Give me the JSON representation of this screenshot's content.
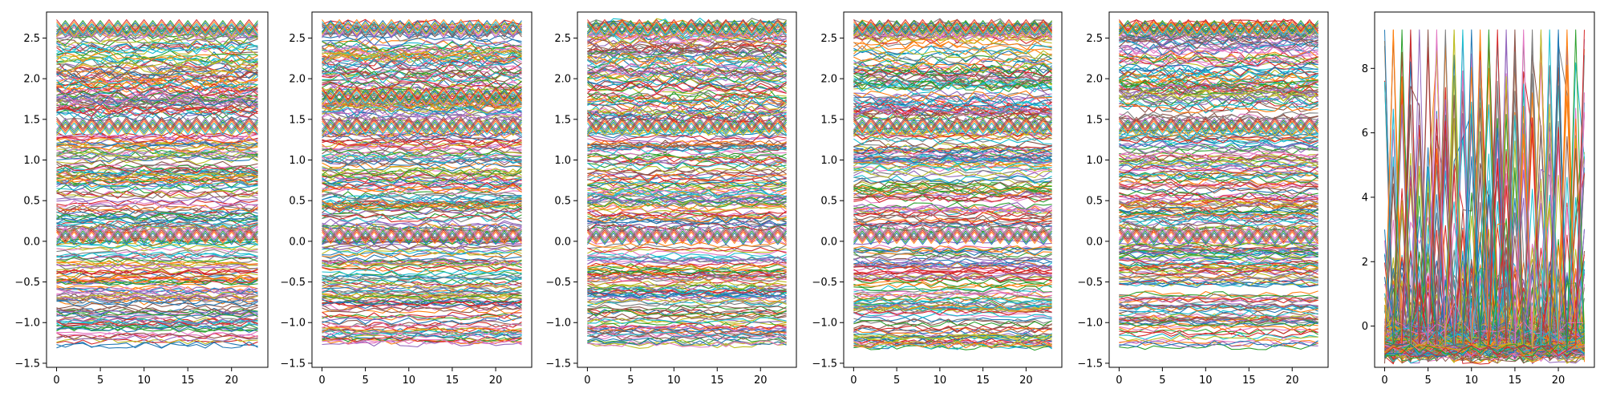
{
  "chart_data": [
    {
      "type": "line",
      "title": "",
      "xlabel": "",
      "ylabel": "",
      "xlim": [
        -1.15,
        24.15
      ],
      "ylim": [
        -1.55,
        2.82
      ],
      "x_ticks": [
        0,
        5,
        10,
        15,
        20
      ],
      "x_tick_labels": [
        "0",
        "5",
        "10",
        "15",
        "20"
      ],
      "y_ticks": [
        -1.5,
        -1.0,
        -0.5,
        0.0,
        0.5,
        1.0,
        1.5,
        2.0,
        2.5
      ],
      "y_tick_labels": [
        "−1.5",
        "−1.0",
        "−0.5",
        "0.0",
        "0.5",
        "1.0",
        "1.5",
        "2.0",
        "2.5"
      ],
      "grid": false,
      "x": [
        0,
        1,
        2,
        3,
        4,
        5,
        6,
        7,
        8,
        9,
        10,
        11,
        12,
        13,
        14,
        15,
        16,
        17,
        18,
        19,
        20,
        21,
        22,
        23
      ],
      "series_description": "many overlapping series, approximately constant, spread between -1.3 and 2.7 with gaps near 0.05 and 1.45",
      "bands": [
        {
          "low": -1.3,
          "high": 0.02,
          "noise": 0.04,
          "count": 95
        },
        {
          "low": 0.15,
          "high": 1.35,
          "noise": 0.05,
          "count": 90
        },
        {
          "low": 1.5,
          "high": 2.68,
          "noise": 0.07,
          "count": 95
        }
      ],
      "zigzag_levels": [
        0.08,
        1.42,
        2.62
      ]
    },
    {
      "type": "line",
      "title": "",
      "xlabel": "",
      "ylabel": "",
      "xlim": [
        -1.15,
        24.15
      ],
      "ylim": [
        -1.55,
        2.82
      ],
      "x_ticks": [
        0,
        5,
        10,
        15,
        20
      ],
      "x_tick_labels": [
        "0",
        "5",
        "10",
        "15",
        "20"
      ],
      "y_ticks": [
        -1.5,
        -1.0,
        -0.5,
        0.0,
        0.5,
        1.0,
        1.5,
        2.0,
        2.5
      ],
      "y_tick_labels": [
        "−1.5",
        "−1.0",
        "−0.5",
        "0.0",
        "0.5",
        "1.0",
        "1.5",
        "2.0",
        "2.5"
      ],
      "grid": false,
      "x": [
        0,
        1,
        2,
        3,
        4,
        5,
        6,
        7,
        8,
        9,
        10,
        11,
        12,
        13,
        14,
        15,
        16,
        17,
        18,
        19,
        20,
        21,
        22,
        23
      ],
      "bands": [
        {
          "low": -1.3,
          "high": 0.02,
          "noise": 0.04,
          "count": 95
        },
        {
          "low": 0.15,
          "high": 1.35,
          "noise": 0.05,
          "count": 90
        },
        {
          "low": 1.5,
          "high": 2.68,
          "noise": 0.07,
          "count": 95
        }
      ],
      "zigzag_levels": [
        0.08,
        1.42,
        1.78,
        2.62
      ]
    },
    {
      "type": "line",
      "title": "",
      "xlabel": "",
      "ylabel": "",
      "xlim": [
        -1.15,
        24.15
      ],
      "ylim": [
        -1.55,
        2.82
      ],
      "x_ticks": [
        0,
        5,
        10,
        15,
        20
      ],
      "x_tick_labels": [
        "0",
        "5",
        "10",
        "15",
        "20"
      ],
      "y_ticks": [
        -1.5,
        -1.0,
        -0.5,
        0.0,
        0.5,
        1.0,
        1.5,
        2.0,
        2.5
      ],
      "y_tick_labels": [
        "−1.5",
        "−1.0",
        "−0.5",
        "0.0",
        "0.5",
        "1.0",
        "1.5",
        "2.0",
        "2.5"
      ],
      "grid": false,
      "x": [
        0,
        1,
        2,
        3,
        4,
        5,
        6,
        7,
        8,
        9,
        10,
        11,
        12,
        13,
        14,
        15,
        16,
        17,
        18,
        19,
        20,
        21,
        22,
        23
      ],
      "bands": [
        {
          "low": -1.3,
          "high": 0.02,
          "noise": 0.04,
          "count": 95
        },
        {
          "low": 0.15,
          "high": 1.35,
          "noise": 0.05,
          "count": 90
        },
        {
          "low": 1.5,
          "high": 2.68,
          "noise": 0.07,
          "count": 95
        }
      ],
      "zigzag_levels": [
        0.08,
        1.42,
        2.62
      ]
    },
    {
      "type": "line",
      "title": "",
      "xlabel": "",
      "ylabel": "",
      "xlim": [
        -1.15,
        24.15
      ],
      "ylim": [
        -1.55,
        2.82
      ],
      "x_ticks": [
        0,
        5,
        10,
        15,
        20
      ],
      "x_tick_labels": [
        "0",
        "5",
        "10",
        "15",
        "20"
      ],
      "y_ticks": [
        -1.5,
        -1.0,
        -0.5,
        0.0,
        0.5,
        1.0,
        1.5,
        2.0,
        2.5
      ],
      "y_tick_labels": [
        "−1.5",
        "−1.0",
        "−0.5",
        "0.0",
        "0.5",
        "1.0",
        "1.5",
        "2.0",
        "2.5"
      ],
      "grid": false,
      "x": [
        0,
        1,
        2,
        3,
        4,
        5,
        6,
        7,
        8,
        9,
        10,
        11,
        12,
        13,
        14,
        15,
        16,
        17,
        18,
        19,
        20,
        21,
        22,
        23
      ],
      "bands": [
        {
          "low": -1.3,
          "high": 0.02,
          "noise": 0.04,
          "count": 95
        },
        {
          "low": 0.15,
          "high": 1.35,
          "noise": 0.05,
          "count": 90
        },
        {
          "low": 1.5,
          "high": 2.68,
          "noise": 0.07,
          "count": 95
        }
      ],
      "zigzag_levels": [
        0.08,
        1.42,
        2.62
      ]
    },
    {
      "type": "line",
      "title": "",
      "xlabel": "",
      "ylabel": "",
      "xlim": [
        -1.15,
        24.15
      ],
      "ylim": [
        -1.55,
        2.82
      ],
      "x_ticks": [
        0,
        5,
        10,
        15,
        20
      ],
      "x_tick_labels": [
        "0",
        "5",
        "10",
        "15",
        "20"
      ],
      "y_ticks": [
        -1.5,
        -1.0,
        -0.5,
        0.0,
        0.5,
        1.0,
        1.5,
        2.0,
        2.5
      ],
      "y_tick_labels": [
        "−1.5",
        "−1.0",
        "−0.5",
        "0.0",
        "0.5",
        "1.0",
        "1.5",
        "2.0",
        "2.5"
      ],
      "grid": false,
      "x": [
        0,
        1,
        2,
        3,
        4,
        5,
        6,
        7,
        8,
        9,
        10,
        11,
        12,
        13,
        14,
        15,
        16,
        17,
        18,
        19,
        20,
        21,
        22,
        23
      ],
      "bands": [
        {
          "low": -1.3,
          "high": 0.02,
          "noise": 0.04,
          "count": 95
        },
        {
          "low": 0.15,
          "high": 1.35,
          "noise": 0.05,
          "count": 90
        },
        {
          "low": 1.5,
          "high": 2.68,
          "noise": 0.07,
          "count": 95
        }
      ],
      "zigzag_levels": [
        0.08,
        1.42,
        2.62
      ]
    },
    {
      "type": "line",
      "title": "",
      "xlabel": "",
      "ylabel": "",
      "xlim": [
        -1.15,
        24.15
      ],
      "ylim": [
        -1.28,
        9.75
      ],
      "x_ticks": [
        0,
        5,
        10,
        15,
        20
      ],
      "x_tick_labels": [
        "0",
        "5",
        "10",
        "15",
        "20"
      ],
      "y_ticks": [
        0,
        2,
        4,
        6,
        8
      ],
      "y_tick_labels": [
        "0",
        "2",
        "4",
        "6",
        "8"
      ],
      "grid": false,
      "x": [
        0,
        1,
        2,
        3,
        4,
        5,
        6,
        7,
        8,
        9,
        10,
        11,
        12,
        13,
        14,
        15,
        16,
        17,
        18,
        19,
        20,
        21,
        22,
        23
      ],
      "series_description": "many overlapping spiky series, most near -1 to 0.5 with frequent peaks up to about 9.2",
      "baseline_range": [
        -0.95,
        0.6
      ],
      "peak_max": 9.2,
      "count": 160
    }
  ],
  "palette": [
    "#1f77b4",
    "#ff7f0e",
    "#2ca02c",
    "#d62728",
    "#9467bd",
    "#8c564b",
    "#e377c2",
    "#7f7f7f",
    "#bcbd22",
    "#17becf"
  ]
}
